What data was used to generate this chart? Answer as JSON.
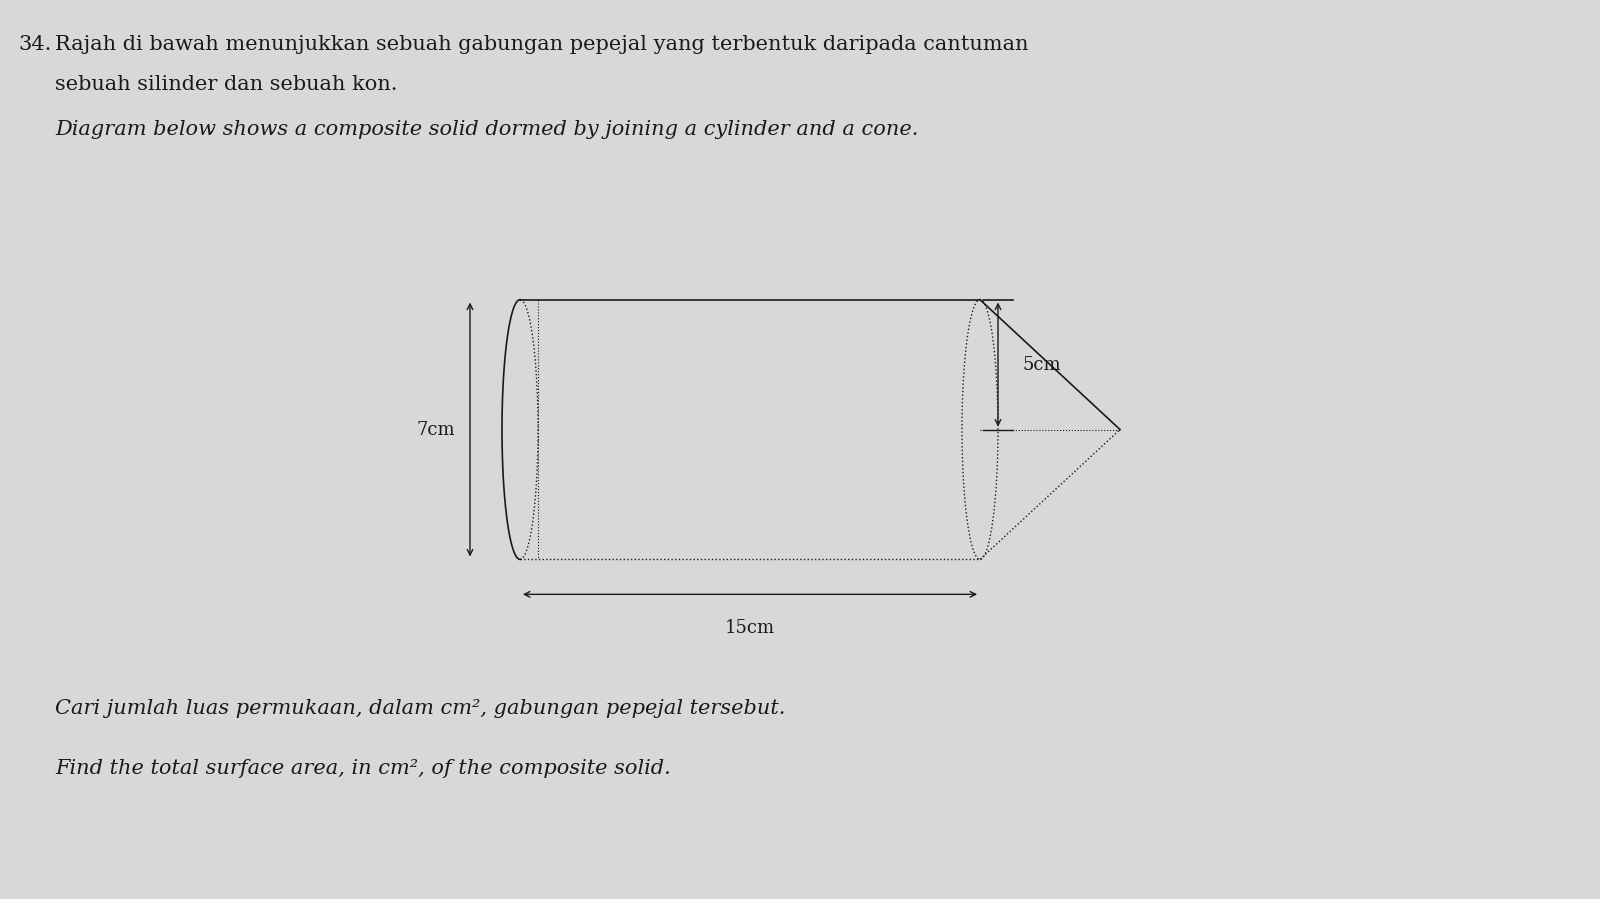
{
  "question_number": "34.",
  "title_malay": "Rajah di bawah menunjukkan sebuah gabungan pepejal yang terbentuk daripada cantuman",
  "title_malay2": "sebuah silinder dan sebuah kon.",
  "title_english": "Diagram below shows a composite solid dormed by joining a cylinder and a cone.",
  "dim_radius_label": "5cm",
  "dim_height_label": "7cm",
  "dim_length_label": "15cm",
  "question_malay": "Cari jumlah luas permukaan, dalam cm², gabungan pepejal tersebut.",
  "question_english": "Find the total surface area, in cm², of the composite solid.",
  "bg_color": "#d8d8d8",
  "text_color": "#1a1a1a",
  "diagram_color": "#1a1a1a",
  "font_size_title": 15,
  "font_size_question": 15,
  "font_size_label": 13
}
